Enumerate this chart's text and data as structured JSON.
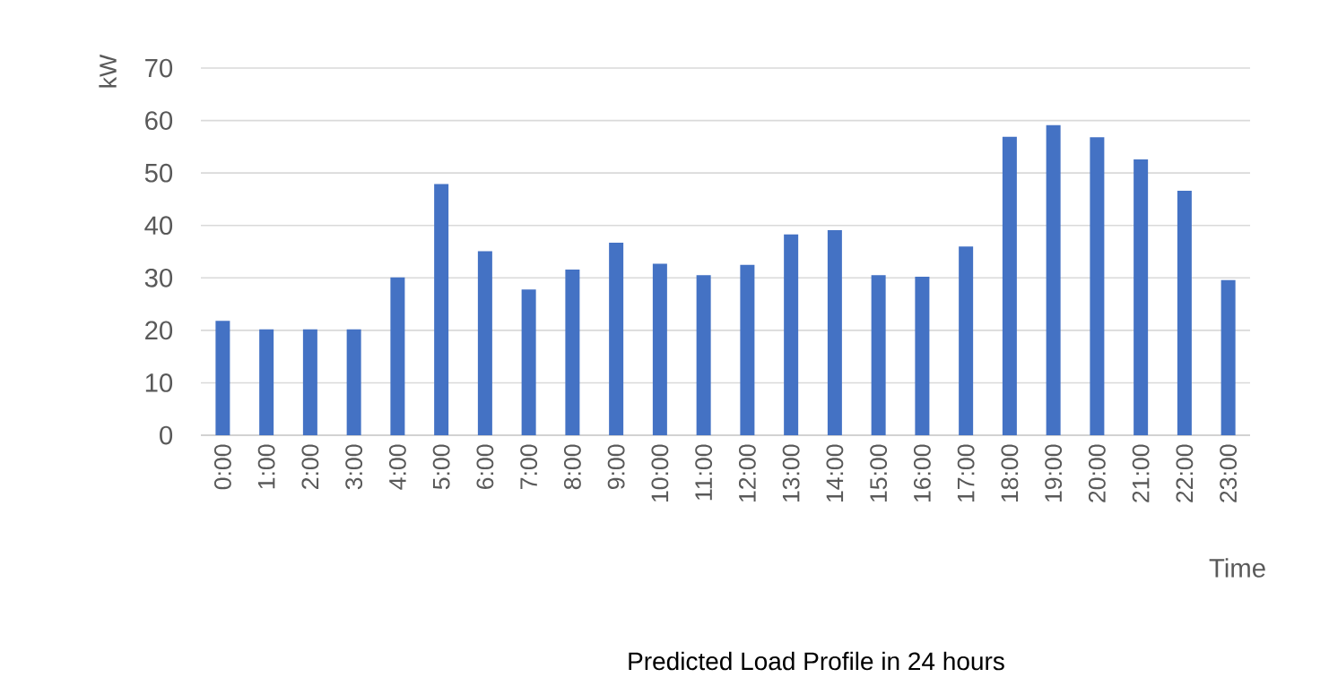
{
  "chart_data": {
    "type": "bar",
    "xlabel": "Time",
    "ylabel": "kW",
    "categories": [
      "0:00",
      "1:00",
      "2:00",
      "3:00",
      "4:00",
      "5:00",
      "6:00",
      "7:00",
      "8:00",
      "9:00",
      "10:00",
      "11:00",
      "12:00",
      "13:00",
      "14:00",
      "15:00",
      "16:00",
      "17:00",
      "18:00",
      "19:00",
      "20:00",
      "21:00",
      "22:00",
      "23:00"
    ],
    "values": [
      21.8,
      20.2,
      20.2,
      20.2,
      30.1,
      47.9,
      35.1,
      27.8,
      31.6,
      36.7,
      32.7,
      30.5,
      32.5,
      38.3,
      39.1,
      30.5,
      30.2,
      36.0,
      56.9,
      59.1,
      56.8,
      52.6,
      46.6,
      29.6
    ],
    "color": "#4472c4",
    "ylim": [
      0,
      70
    ],
    "yticks": [
      0,
      10,
      20,
      30,
      40,
      50,
      60,
      70
    ],
    "grid": "y",
    "annotations": [
      "Predicted Load Profile in 24 hours"
    ]
  }
}
